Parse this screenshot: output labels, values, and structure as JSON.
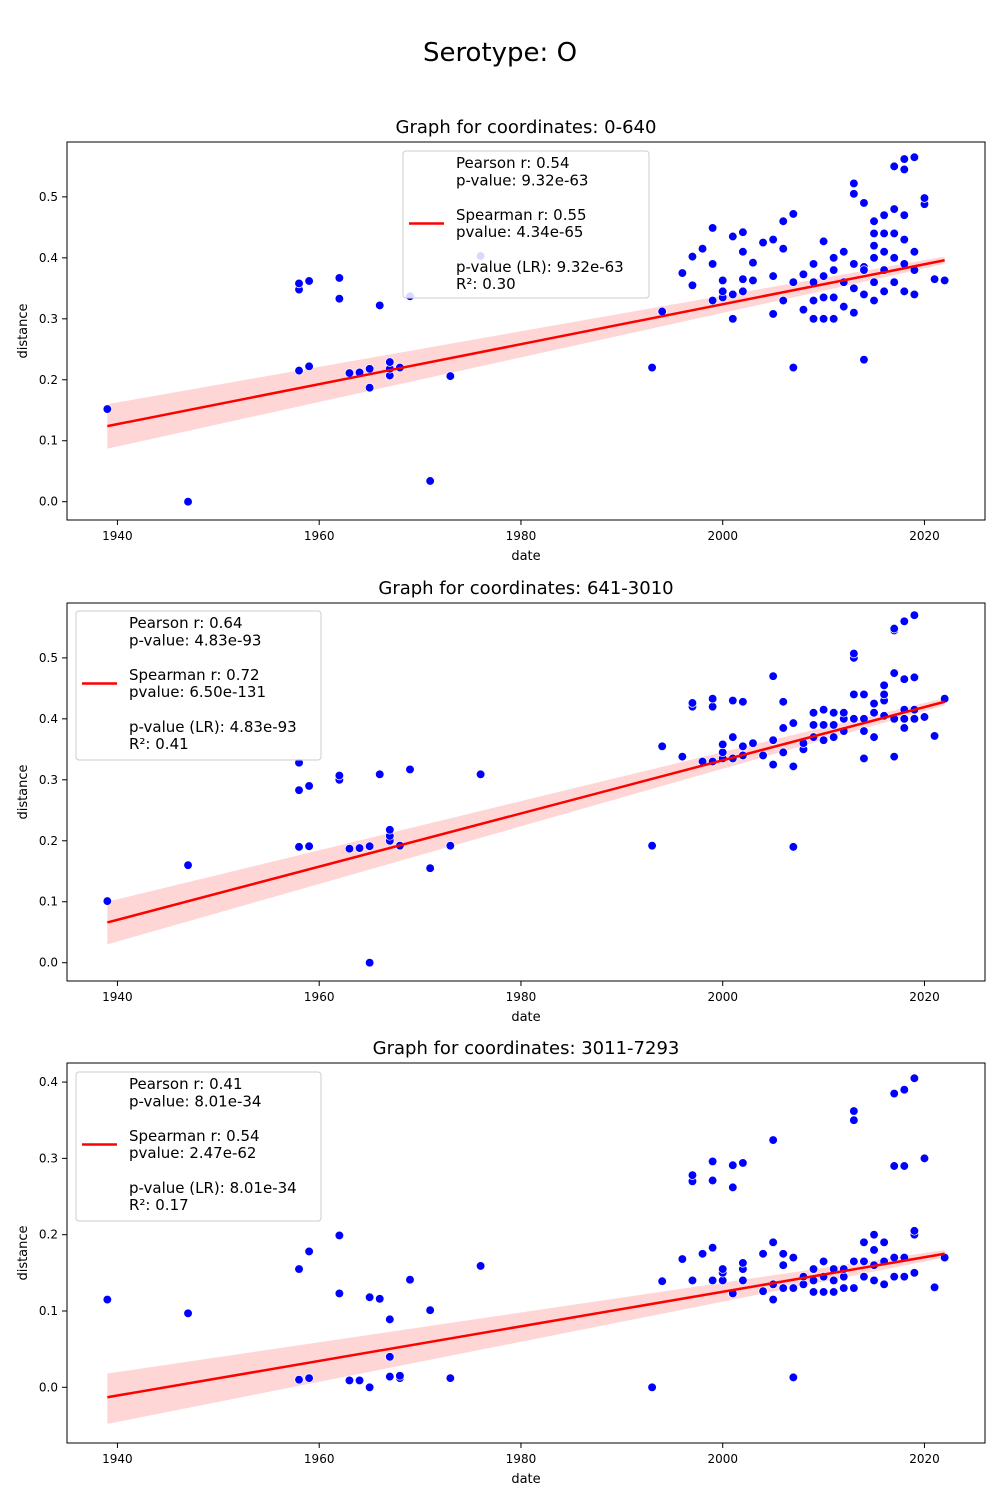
{
  "suptitle": "Serotype: O",
  "colors": {
    "points": "#0000ff",
    "points_edge": "#ffffff",
    "fit_line": "#ff0000",
    "band": "#ffcccc",
    "legend_edge": "#cccccc"
  },
  "chart_data": [
    {
      "type": "scatter",
      "title": "Graph for coordinates: 0-640",
      "xlabel": "date",
      "ylabel": "distance",
      "xlim": [
        1935,
        2026
      ],
      "ylim": [
        -0.03,
        0.59
      ],
      "xticks": [
        1940,
        1960,
        1980,
        2000,
        2020
      ],
      "yticks": [
        0.0,
        0.1,
        0.2,
        0.3,
        0.4,
        0.5
      ],
      "grid": false,
      "legend_position": "upper center",
      "legend_lines": [
        "Pearson r: 0.54",
        "p-value: 9.32e-63",
        "",
        "Spearman r: 0.55",
        "pvalue: 4.34e-65",
        "",
        "p-value (LR): 9.32e-63",
        "R²: 0.30"
      ],
      "regression": {
        "x": [
          1939,
          2022
        ],
        "y": [
          0.124,
          0.396
        ],
        "ci_lower": [
          0.087,
          0.39
        ],
        "ci_upper": [
          0.16,
          0.402
        ]
      },
      "x": [
        1939,
        1947,
        1958,
        1958,
        1958,
        1959,
        1959,
        1962,
        1962,
        1963,
        1964,
        1965,
        1965,
        1966,
        1967,
        1967,
        1967,
        1968,
        1969,
        1971,
        1973,
        1976,
        1993,
        1994,
        1996,
        1997,
        1997,
        1998,
        1999,
        1999,
        1999,
        2000,
        2000,
        2000,
        2001,
        2001,
        2001,
        2002,
        2002,
        2002,
        2002,
        2003,
        2003,
        2004,
        2005,
        2005,
        2005,
        2006,
        2006,
        2006,
        2007,
        2007,
        2007,
        2008,
        2008,
        2009,
        2009,
        2009,
        2009,
        2010,
        2010,
        2010,
        2010,
        2011,
        2011,
        2011,
        2011,
        2012,
        2012,
        2012,
        2013,
        2013,
        2013,
        2013,
        2013,
        2014,
        2014,
        2014,
        2014,
        2014,
        2015,
        2015,
        2015,
        2015,
        2015,
        2015,
        2016,
        2016,
        2016,
        2016,
        2016,
        2017,
        2017,
        2017,
        2017,
        2017,
        2018,
        2018,
        2018,
        2018,
        2018,
        2018,
        2019,
        2019,
        2019,
        2019,
        2020,
        2020,
        2021,
        2022
      ],
      "y": [
        0.152,
        0.0,
        0.215,
        0.348,
        0.358,
        0.222,
        0.362,
        0.333,
        0.367,
        0.211,
        0.212,
        0.187,
        0.218,
        0.322,
        0.207,
        0.218,
        0.229,
        0.22,
        0.337,
        0.034,
        0.206,
        0.403,
        0.22,
        0.312,
        0.375,
        0.355,
        0.402,
        0.415,
        0.33,
        0.39,
        0.449,
        0.335,
        0.345,
        0.363,
        0.3,
        0.34,
        0.435,
        0.345,
        0.41,
        0.442,
        0.365,
        0.363,
        0.392,
        0.425,
        0.308,
        0.37,
        0.43,
        0.33,
        0.415,
        0.46,
        0.22,
        0.36,
        0.472,
        0.315,
        0.373,
        0.3,
        0.33,
        0.36,
        0.39,
        0.3,
        0.335,
        0.37,
        0.427,
        0.3,
        0.335,
        0.38,
        0.4,
        0.32,
        0.36,
        0.41,
        0.31,
        0.35,
        0.39,
        0.505,
        0.522,
        0.233,
        0.34,
        0.385,
        0.49,
        0.38,
        0.33,
        0.36,
        0.4,
        0.42,
        0.44,
        0.46,
        0.345,
        0.38,
        0.41,
        0.44,
        0.47,
        0.36,
        0.4,
        0.44,
        0.48,
        0.55,
        0.345,
        0.39,
        0.43,
        0.47,
        0.545,
        0.562,
        0.34,
        0.38,
        0.41,
        0.565,
        0.488,
        0.498,
        0.365,
        0.363
      ]
    },
    {
      "type": "scatter",
      "title": "Graph for coordinates: 641-3010",
      "xlabel": "date",
      "ylabel": "distance",
      "xlim": [
        1935,
        2026
      ],
      "ylim": [
        -0.03,
        0.59
      ],
      "xticks": [
        1940,
        1960,
        1980,
        2000,
        2020
      ],
      "yticks": [
        0.0,
        0.1,
        0.2,
        0.3,
        0.4,
        0.5
      ],
      "grid": false,
      "legend_position": "upper left",
      "legend_lines": [
        "Pearson r: 0.64",
        "p-value: 4.83e-93",
        "",
        "Spearman r: 0.72",
        "pvalue: 6.50e-131",
        "",
        "p-value (LR): 4.83e-93",
        "R²: 0.41"
      ],
      "regression": {
        "x": [
          1939,
          2022
        ],
        "y": [
          0.066,
          0.428
        ],
        "ci_lower": [
          0.03,
          0.422
        ],
        "ci_upper": [
          0.1,
          0.434
        ]
      },
      "x": [
        1939,
        1947,
        1958,
        1958,
        1958,
        1959,
        1959,
        1962,
        1962,
        1963,
        1964,
        1965,
        1965,
        1966,
        1967,
        1967,
        1967,
        1968,
        1969,
        1971,
        1973,
        1976,
        1993,
        1994,
        1996,
        1997,
        1997,
        1998,
        1999,
        1999,
        1999,
        2000,
        2000,
        2000,
        2001,
        2001,
        2001,
        2002,
        2002,
        2002,
        2003,
        2004,
        2005,
        2005,
        2005,
        2006,
        2006,
        2006,
        2007,
        2007,
        2007,
        2008,
        2008,
        2009,
        2009,
        2009,
        2010,
        2010,
        2010,
        2011,
        2011,
        2011,
        2012,
        2012,
        2012,
        2013,
        2013,
        2013,
        2013,
        2014,
        2014,
        2014,
        2014,
        2015,
        2015,
        2015,
        2016,
        2016,
        2016,
        2016,
        2017,
        2017,
        2017,
        2017,
        2017,
        2018,
        2018,
        2018,
        2018,
        2018,
        2019,
        2019,
        2019,
        2019,
        2020,
        2021,
        2022
      ],
      "y": [
        0.101,
        0.16,
        0.19,
        0.283,
        0.328,
        0.191,
        0.29,
        0.3,
        0.307,
        0.187,
        0.188,
        0.0,
        0.191,
        0.309,
        0.2,
        0.208,
        0.218,
        0.192,
        0.317,
        0.155,
        0.192,
        0.309,
        0.192,
        0.355,
        0.338,
        0.42,
        0.426,
        0.33,
        0.33,
        0.42,
        0.433,
        0.335,
        0.345,
        0.358,
        0.335,
        0.37,
        0.43,
        0.34,
        0.355,
        0.428,
        0.36,
        0.34,
        0.325,
        0.365,
        0.47,
        0.345,
        0.385,
        0.428,
        0.19,
        0.322,
        0.393,
        0.35,
        0.36,
        0.37,
        0.39,
        0.41,
        0.365,
        0.39,
        0.415,
        0.37,
        0.39,
        0.41,
        0.38,
        0.4,
        0.41,
        0.4,
        0.44,
        0.5,
        0.507,
        0.335,
        0.38,
        0.4,
        0.44,
        0.37,
        0.41,
        0.425,
        0.405,
        0.43,
        0.44,
        0.455,
        0.338,
        0.4,
        0.475,
        0.545,
        0.548,
        0.385,
        0.4,
        0.415,
        0.465,
        0.56,
        0.4,
        0.415,
        0.468,
        0.57,
        0.403,
        0.372,
        0.433
      ]
    },
    {
      "type": "scatter",
      "title": "Graph for coordinates: 3011-7293",
      "xlabel": "date",
      "ylabel": "distance",
      "xlim": [
        1935,
        2026
      ],
      "ylim": [
        -0.073,
        0.425
      ],
      "xticks": [
        1940,
        1960,
        1980,
        2000,
        2020
      ],
      "yticks": [
        0.0,
        0.1,
        0.2,
        0.3,
        0.4
      ],
      "grid": false,
      "legend_position": "upper left",
      "legend_lines": [
        "Pearson r: 0.41",
        "p-value: 8.01e-34",
        "",
        "Spearman r: 0.54",
        "pvalue: 2.47e-62",
        "",
        "p-value (LR): 8.01e-34",
        "R²: 0.17"
      ],
      "regression": {
        "x": [
          1939,
          2022
        ],
        "y": [
          -0.013,
          0.175
        ],
        "ci_lower": [
          -0.048,
          0.17
        ],
        "ci_upper": [
          0.018,
          0.18
        ]
      },
      "x": [
        1939,
        1947,
        1958,
        1958,
        1959,
        1959,
        1962,
        1962,
        1963,
        1964,
        1965,
        1965,
        1966,
        1967,
        1967,
        1967,
        1968,
        1968,
        1969,
        1971,
        1973,
        1976,
        1993,
        1994,
        1996,
        1997,
        1997,
        1997,
        1998,
        1999,
        1999,
        1999,
        1999,
        2000,
        2000,
        2000,
        2001,
        2001,
        2001,
        2002,
        2002,
        2002,
        2002,
        2004,
        2004,
        2005,
        2005,
        2005,
        2005,
        2006,
        2006,
        2006,
        2007,
        2007,
        2007,
        2008,
        2008,
        2009,
        2009,
        2009,
        2010,
        2010,
        2010,
        2011,
        2011,
        2011,
        2012,
        2012,
        2012,
        2013,
        2013,
        2013,
        2013,
        2014,
        2014,
        2014,
        2015,
        2015,
        2015,
        2015,
        2016,
        2016,
        2016,
        2017,
        2017,
        2017,
        2017,
        2018,
        2018,
        2018,
        2018,
        2019,
        2019,
        2019,
        2019,
        2020,
        2021,
        2022
      ],
      "y": [
        0.115,
        0.097,
        0.01,
        0.155,
        0.012,
        0.178,
        0.123,
        0.199,
        0.009,
        0.009,
        0.0,
        0.118,
        0.116,
        0.014,
        0.04,
        0.089,
        0.012,
        0.015,
        0.141,
        0.101,
        0.012,
        0.159,
        0.0,
        0.139,
        0.168,
        0.14,
        0.27,
        0.278,
        0.175,
        0.14,
        0.183,
        0.271,
        0.296,
        0.14,
        0.15,
        0.155,
        0.123,
        0.262,
        0.291,
        0.14,
        0.155,
        0.163,
        0.294,
        0.126,
        0.175,
        0.115,
        0.135,
        0.19,
        0.324,
        0.13,
        0.16,
        0.175,
        0.013,
        0.13,
        0.17,
        0.135,
        0.145,
        0.125,
        0.14,
        0.155,
        0.125,
        0.145,
        0.165,
        0.125,
        0.14,
        0.155,
        0.13,
        0.145,
        0.155,
        0.13,
        0.165,
        0.35,
        0.362,
        0.145,
        0.165,
        0.19,
        0.14,
        0.16,
        0.18,
        0.2,
        0.135,
        0.165,
        0.19,
        0.145,
        0.17,
        0.29,
        0.385,
        0.145,
        0.17,
        0.29,
        0.39,
        0.15,
        0.2,
        0.205,
        0.405,
        0.3,
        0.131,
        0.17
      ]
    }
  ]
}
